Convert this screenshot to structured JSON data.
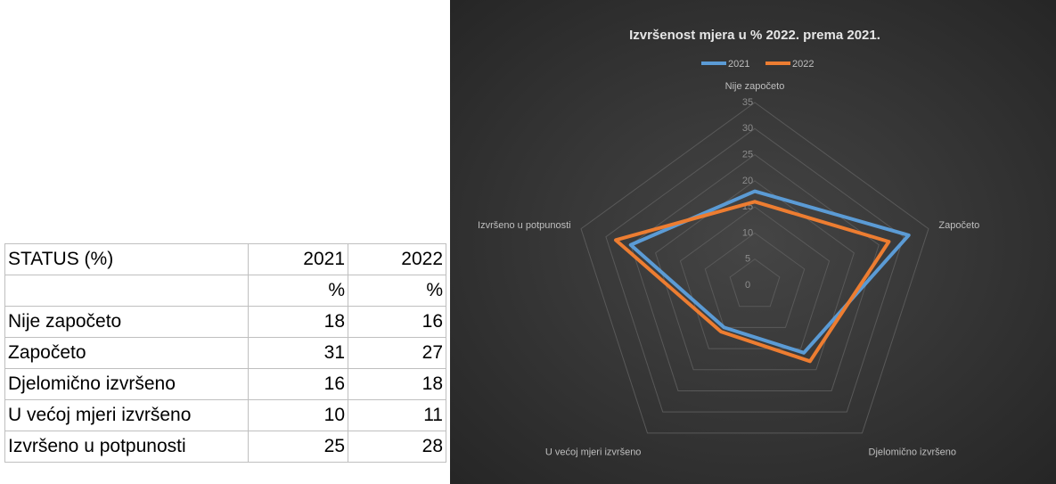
{
  "chart_data": {
    "type": "radar",
    "title": "Izvršenost mjera u % 2022. prema 2021.",
    "categories": [
      "Nije započeto",
      "Započeto",
      "Djelomično izvršeno",
      "U većoj mjeri izvršeno",
      "Izvršeno u potpunosti"
    ],
    "series": [
      {
        "name": "2021",
        "color": "#5b9bd5",
        "values": [
          18,
          31,
          16,
          10,
          25
        ]
      },
      {
        "name": "2022",
        "color": "#ed7d31",
        "values": [
          16,
          27,
          18,
          11,
          28
        ]
      }
    ],
    "ylim": [
      0,
      35
    ],
    "yticks": [
      0,
      5,
      10,
      15,
      20,
      25,
      30,
      35
    ],
    "grid": true,
    "legend": "top"
  },
  "table": {
    "corner": "STATUS (%)",
    "units": [
      "%",
      "%"
    ]
  }
}
